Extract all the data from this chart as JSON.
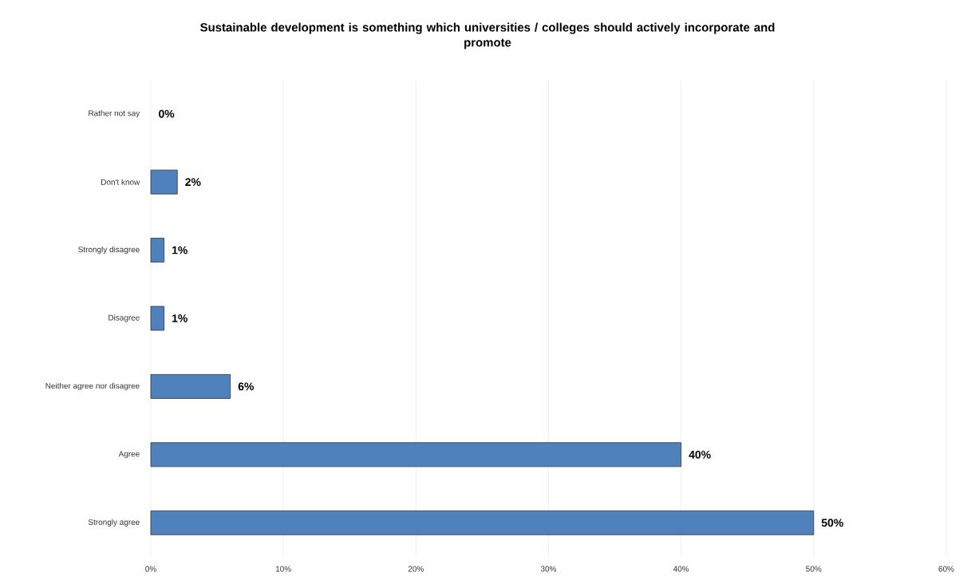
{
  "chart_data": {
    "type": "bar",
    "orientation": "horizontal",
    "title": "Sustainable development is something which universities / colleges should actively incorporate and promote",
    "categories": [
      "Rather not say",
      "Don't know",
      "Strongly disagree",
      "Disagree",
      "Neither agree nor disagree",
      "Agree",
      "Strongly agree"
    ],
    "values": [
      0,
      2,
      1,
      1,
      6,
      40,
      50
    ],
    "value_labels": [
      "0%",
      "2%",
      "1%",
      "1%",
      "6%",
      "40%",
      "50%"
    ],
    "color": "#4f81bd",
    "xlim": [
      0,
      60
    ],
    "xticks": [
      {
        "value": 0,
        "label": "0%"
      },
      {
        "value": 10,
        "label": "10%"
      },
      {
        "value": 20,
        "label": "20%"
      },
      {
        "value": 30,
        "label": "30%"
      },
      {
        "value": 40,
        "label": "40%"
      },
      {
        "value": 50,
        "label": "50%"
      },
      {
        "value": 60,
        "label": "60%"
      }
    ],
    "grid": "x"
  }
}
